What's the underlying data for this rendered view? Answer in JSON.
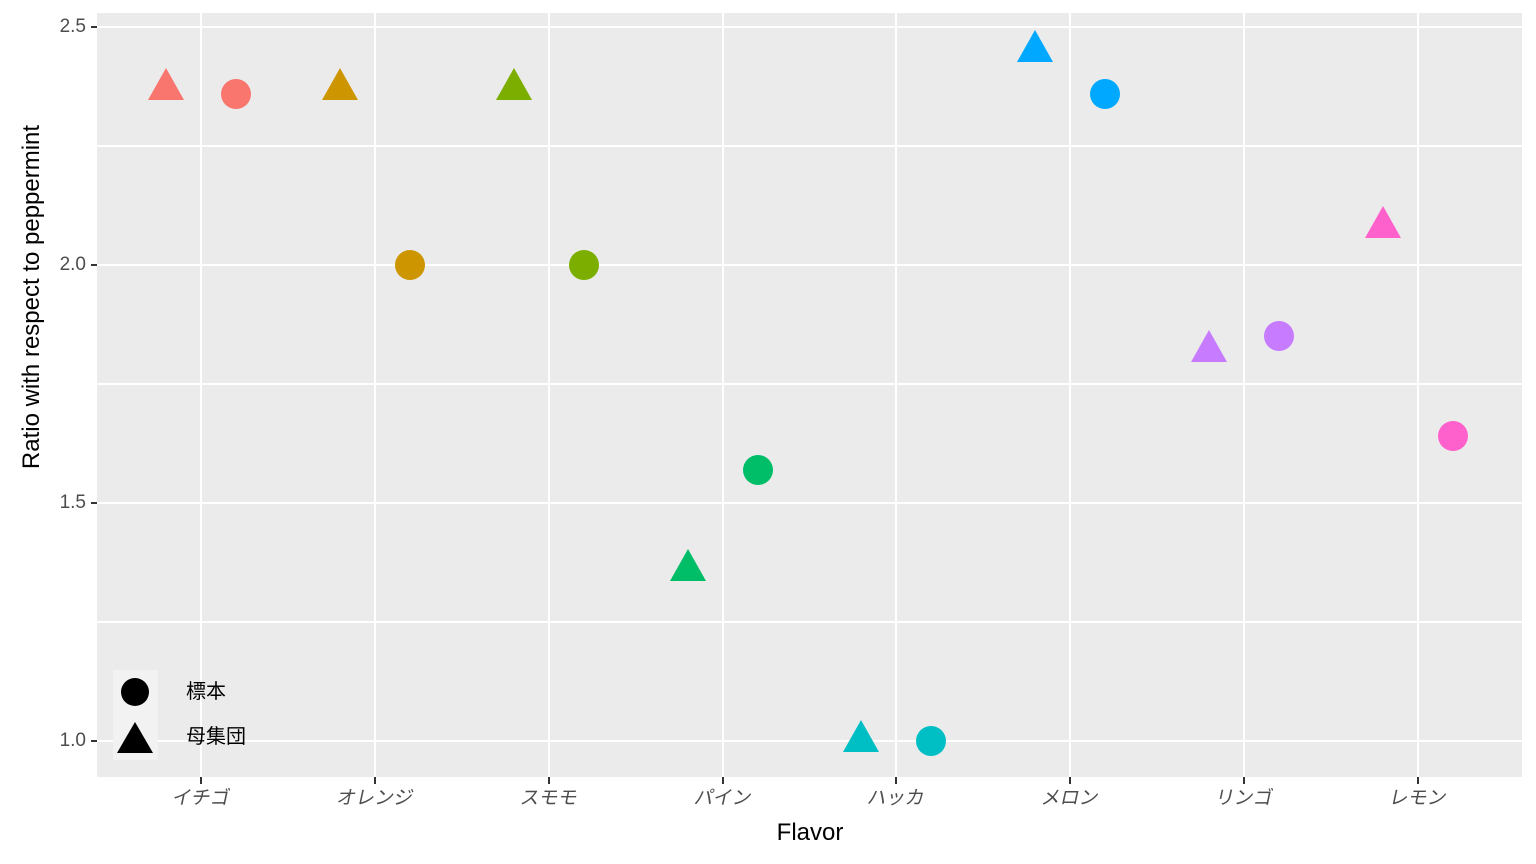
{
  "figure": {
    "background": "#FFFFFF",
    "panel_background": "#EBEBEB",
    "gridline_color": "#FFFFFF",
    "axis_text_color": "#4D4D4D",
    "tick_mark_color": "#333333",
    "axis_title_color": "#000000"
  },
  "axes": {
    "x_title": "Flavor",
    "y_title": "Ratio with respect to peppermint"
  },
  "legend": {
    "position": "inside-bottom-left",
    "items": [
      {
        "shape": "circle-icon",
        "label": "標本"
      },
      {
        "shape": "triangle-icon",
        "label": "母集団"
      }
    ]
  },
  "chart_data": {
    "type": "scatter",
    "title": "",
    "xlabel": "Flavor",
    "ylabel": "Ratio with respect to peppermint",
    "categories": [
      "イチゴ",
      "オレンジ",
      "スモモ",
      "パイン",
      "ハッカ",
      "メロン",
      "リンゴ",
      "レモン"
    ],
    "category_colors": [
      "#F8766D",
      "#CD9600",
      "#7CAE00",
      "#00BE67",
      "#00BFC4",
      "#00A9FF",
      "#C77CFF",
      "#FF61CC"
    ],
    "series": [
      {
        "name": "標本",
        "marker": "circle",
        "values": [
          2.36,
          2.0,
          2.0,
          1.57,
          1.0,
          2.36,
          1.85,
          1.64
        ]
      },
      {
        "name": "母集団",
        "marker": "triangle",
        "values": [
          2.38,
          2.38,
          2.38,
          1.37,
          1.01,
          2.46,
          1.83,
          2.09
        ]
      }
    ],
    "ylim": [
      0.93,
      2.53
    ],
    "y_major_ticks": [
      1.0,
      1.5,
      2.0,
      2.5
    ],
    "y_major_tick_labels": [
      "1.0",
      "1.5",
      "2.0",
      "2.5"
    ],
    "y_minor_ticks": [
      1.25,
      1.75,
      2.25
    ],
    "grid": "major-and-minor-horizontal, major-vertical-per-category",
    "legend_position": "inside bottom-left",
    "marker_style": "circle = sample (標本), triangle = population (母集団), dodged: triangle left, circle right"
  }
}
